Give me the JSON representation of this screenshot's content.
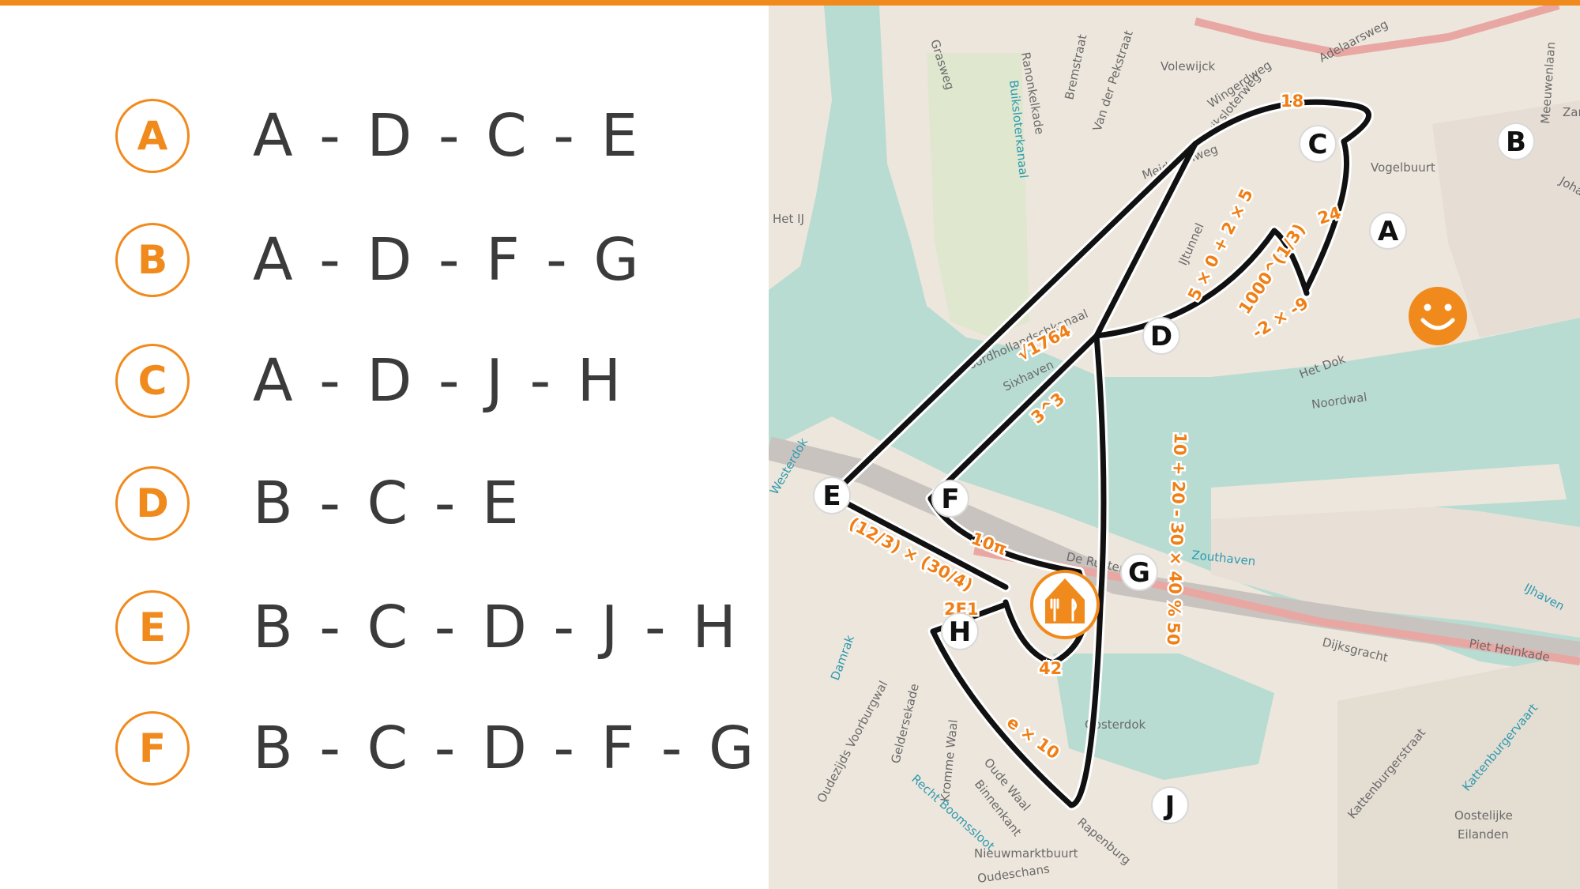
{
  "options": [
    {
      "letter": "A",
      "route": "A - D - C - E"
    },
    {
      "letter": "B",
      "route": "A - D - F - G"
    },
    {
      "letter": "C",
      "route": "A - D - J - H"
    },
    {
      "letter": "D",
      "route": "B - C - E"
    },
    {
      "letter": "E",
      "route": "B - C - D - J - H"
    },
    {
      "letter": "F",
      "route": "B - C - D - F - G"
    }
  ],
  "map": {
    "nodes": {
      "A": "A",
      "B": "B",
      "C": "C",
      "D": "D",
      "E": "E",
      "F": "F",
      "G": "G",
      "H": "H",
      "J": "J"
    },
    "edge_labels": {
      "C_B": "18",
      "B_home": "24",
      "A_home": "1000^(1/3)",
      "A_D": "-2 × -9",
      "D_C": "5 × 0 + 2 × 5",
      "E_C": "√1764",
      "D_F": "3^3",
      "D_J": "10 + 20 - 30 × 40 % 50",
      "F_G": "10π",
      "E_rest": "(12/3) × (30/4)",
      "H_rest": "2E1",
      "G_rest": "42",
      "H_J": "e × 10"
    },
    "streets": [
      "Grasweg",
      "Ranonkelkade",
      "Buiksloterkanaal",
      "Bremstraat",
      "Van der Pekstraat",
      "Volewijck",
      "Wingerdweg",
      "Buiksloterweg",
      "Adelaarsweg",
      "Meeuwenlaan",
      "Zam",
      "Johan",
      "Meidoornweg",
      "Vogelbuurt",
      "Het IJ",
      "IJtunnel",
      "Het Dok",
      "Noordwal",
      "Sixhaven",
      "Noordhollandschkanaal",
      "Westerdok",
      "De Ruijter",
      "Piet Heinkade",
      "Dijksgracht",
      "IJhaven",
      "Oosterdok",
      "Damrak",
      "Oudezijds Voorburgwal",
      "Geldersekade",
      "Kromme Waal",
      "Binnenkant",
      "Oude Waal",
      "Recht Boomssloot",
      "Rapenburg",
      "Nieuwmarktbuurt",
      "Oostelijke",
      "Eilanden",
      "Kattenburgervaart",
      "Kattenburgerstraat",
      "Zouthaven",
      "Oudeschans"
    ],
    "colors": {
      "water": "#b9dcd2",
      "land": "#ede6dc",
      "route": "#111111",
      "accent": "#f18a1c"
    },
    "icons": [
      "smiley-icon",
      "restaurant-icon"
    ]
  }
}
